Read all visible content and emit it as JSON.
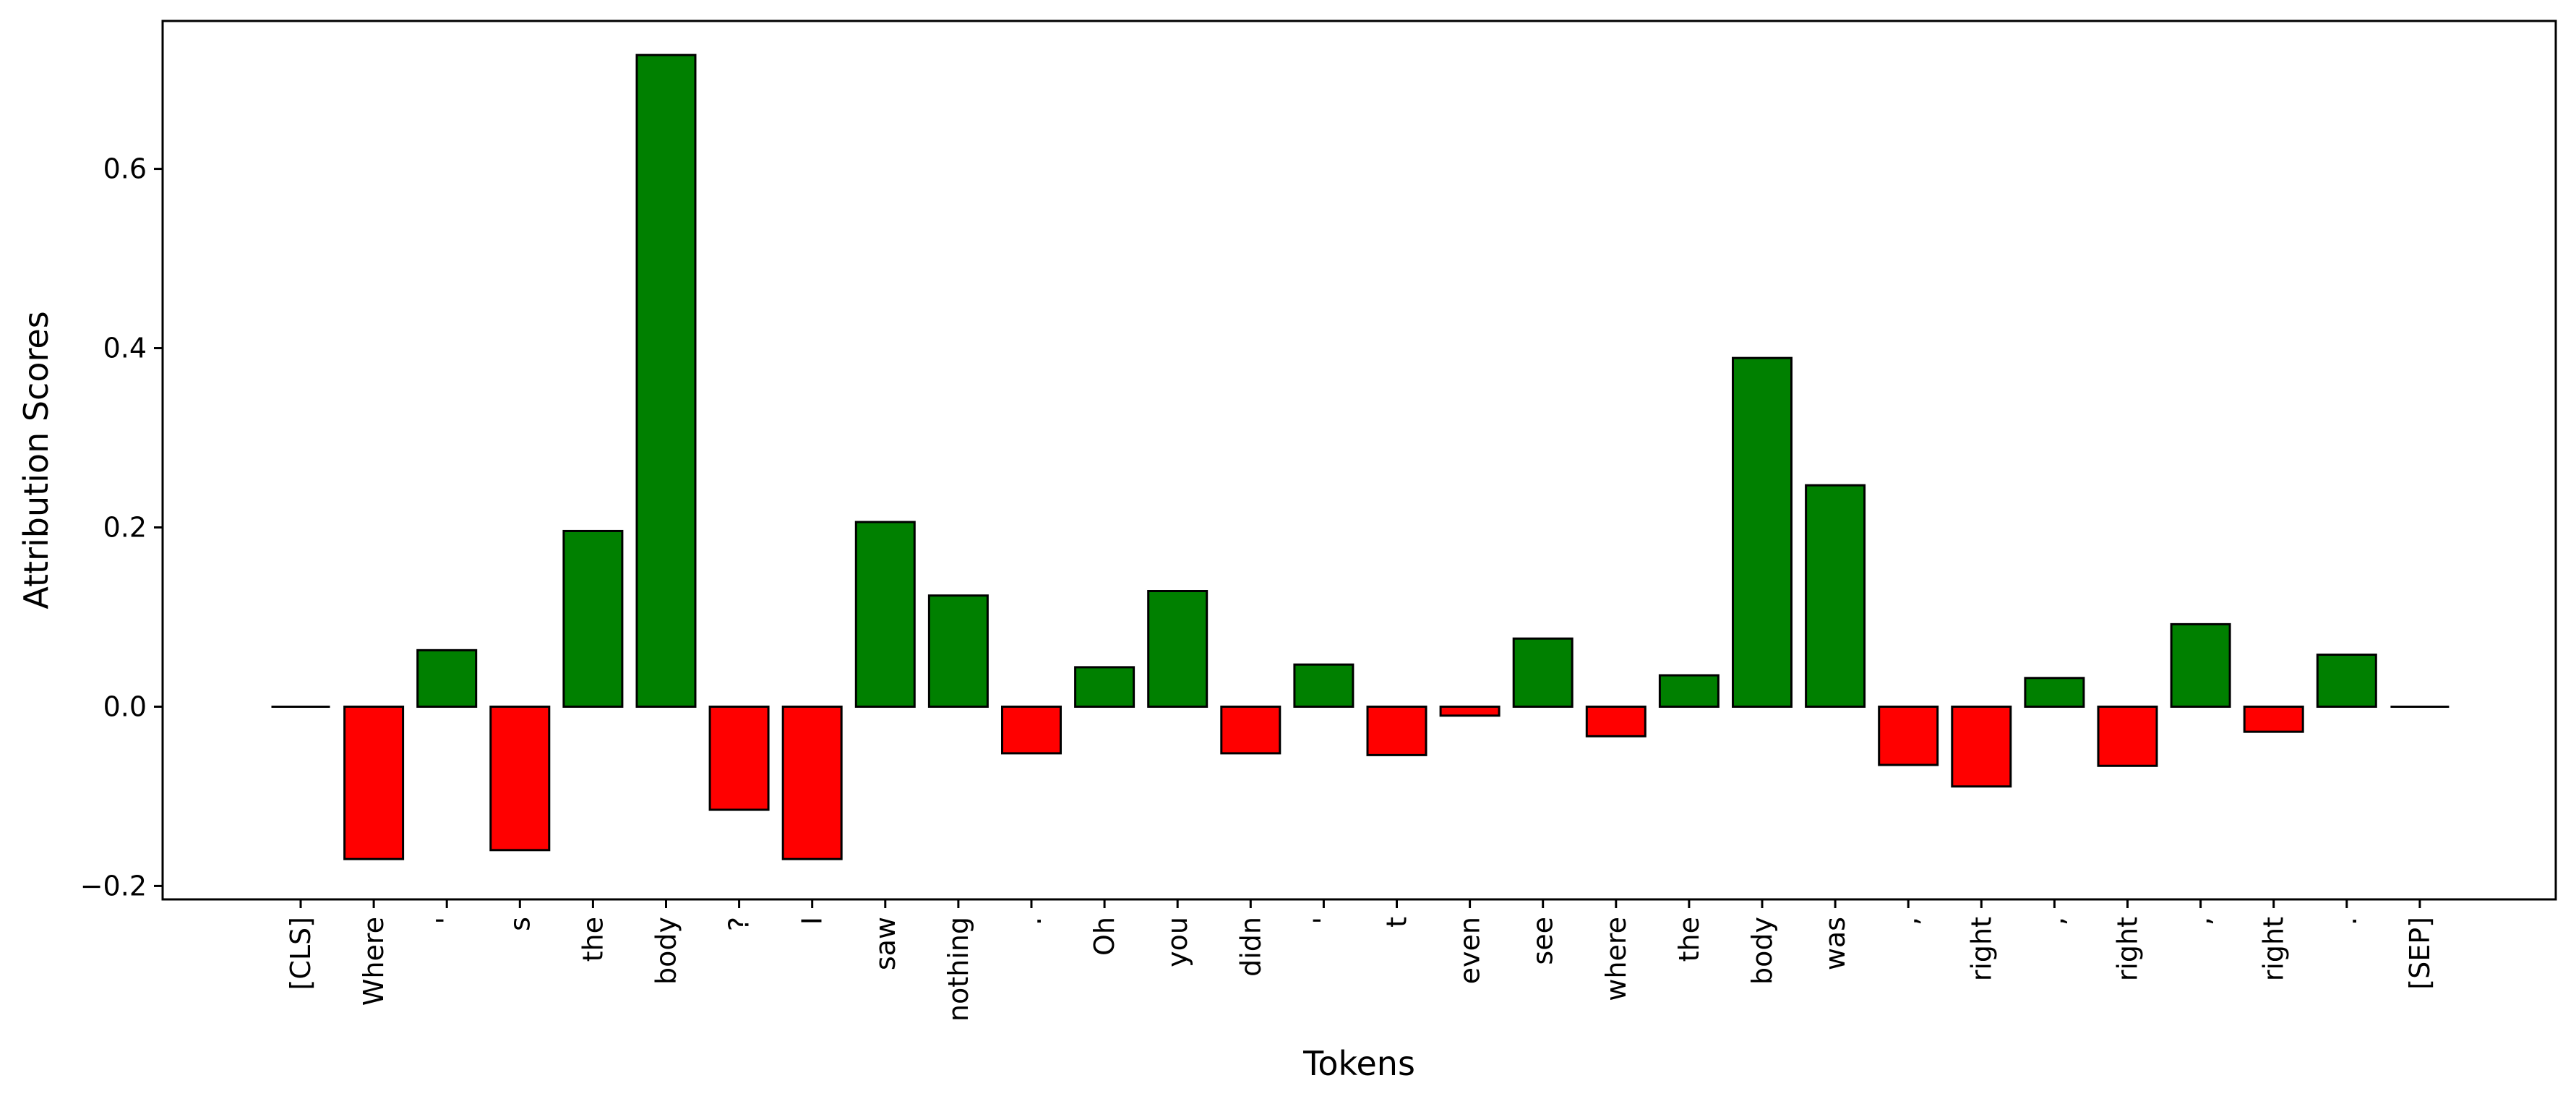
{
  "chart_data": {
    "type": "bar",
    "title": "",
    "xlabel": "Tokens",
    "ylabel": "Attribution Scores",
    "ylim": [
      -0.215,
      0.765
    ],
    "yticks": [
      -0.2,
      0.0,
      0.2,
      0.4,
      0.6
    ],
    "ytick_labels": [
      "−0.2",
      "0.0",
      "0.2",
      "0.4",
      "0.6"
    ],
    "grid": false,
    "positive_color": "#008000",
    "negative_color": "#ff0000",
    "edge_color": "#000000",
    "categories": [
      "[CLS]",
      "Where",
      "'",
      "s",
      "the",
      "body",
      "?",
      "I",
      "saw",
      "nothing",
      ".",
      "Oh",
      "you",
      "didn",
      "'",
      "t",
      "even",
      "see",
      "where",
      "the",
      "body",
      "was",
      ",",
      "right",
      ",",
      "right",
      ",",
      "right",
      ".",
      "[SEP]"
    ],
    "values": [
      0.0,
      -0.17,
      0.063,
      -0.16,
      0.196,
      0.727,
      -0.115,
      -0.17,
      0.206,
      0.124,
      -0.052,
      0.044,
      0.129,
      -0.052,
      0.047,
      -0.054,
      -0.01,
      0.076,
      -0.033,
      0.035,
      0.389,
      0.247,
      -0.065,
      -0.089,
      0.032,
      -0.066,
      0.092,
      -0.028,
      0.058,
      0.0
    ]
  }
}
